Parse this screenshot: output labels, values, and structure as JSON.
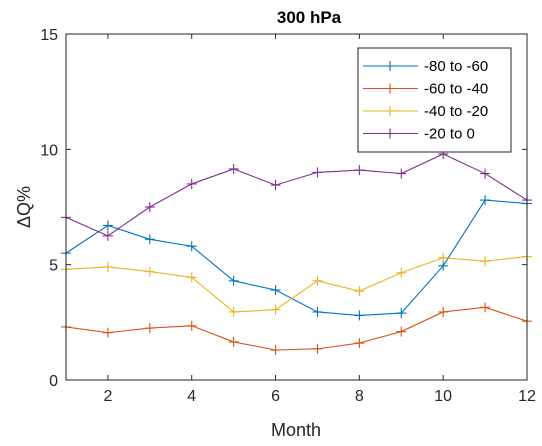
{
  "chart_data": {
    "type": "line",
    "title": "300 hPa",
    "xlabel": "Month",
    "ylabel": "ΔQ%",
    "xlim": [
      1,
      12
    ],
    "ylim": [
      0,
      15
    ],
    "xticks": [
      2,
      4,
      6,
      8,
      10,
      12
    ],
    "yticks": [
      0,
      5,
      10,
      15
    ],
    "grid": false,
    "legend_position": "top-right",
    "marker": "plus",
    "x": [
      1,
      2,
      3,
      4,
      5,
      6,
      7,
      8,
      9,
      10,
      11,
      12
    ],
    "series": [
      {
        "name": "-80 to -60",
        "color": "#0072BD",
        "values": [
          5.5,
          6.7,
          6.1,
          5.8,
          4.3,
          3.9,
          2.95,
          2.8,
          2.9,
          4.95,
          7.8,
          7.65
        ]
      },
      {
        "name": "-60 to -40",
        "color": "#D95319",
        "values": [
          2.3,
          2.05,
          2.25,
          2.35,
          1.65,
          1.3,
          1.35,
          1.6,
          2.1,
          2.95,
          3.15,
          2.55
        ]
      },
      {
        "name": "-40 to -20",
        "color": "#EDB120",
        "values": [
          4.8,
          4.9,
          4.7,
          4.45,
          2.95,
          3.05,
          4.3,
          3.85,
          4.65,
          5.3,
          5.15,
          5.35
        ]
      },
      {
        "name": "-20 to 0",
        "color": "#7E2F8E",
        "values": [
          7.05,
          6.25,
          7.5,
          8.5,
          9.15,
          8.45,
          9.0,
          9.1,
          8.95,
          9.8,
          8.95,
          7.8
        ]
      }
    ]
  }
}
